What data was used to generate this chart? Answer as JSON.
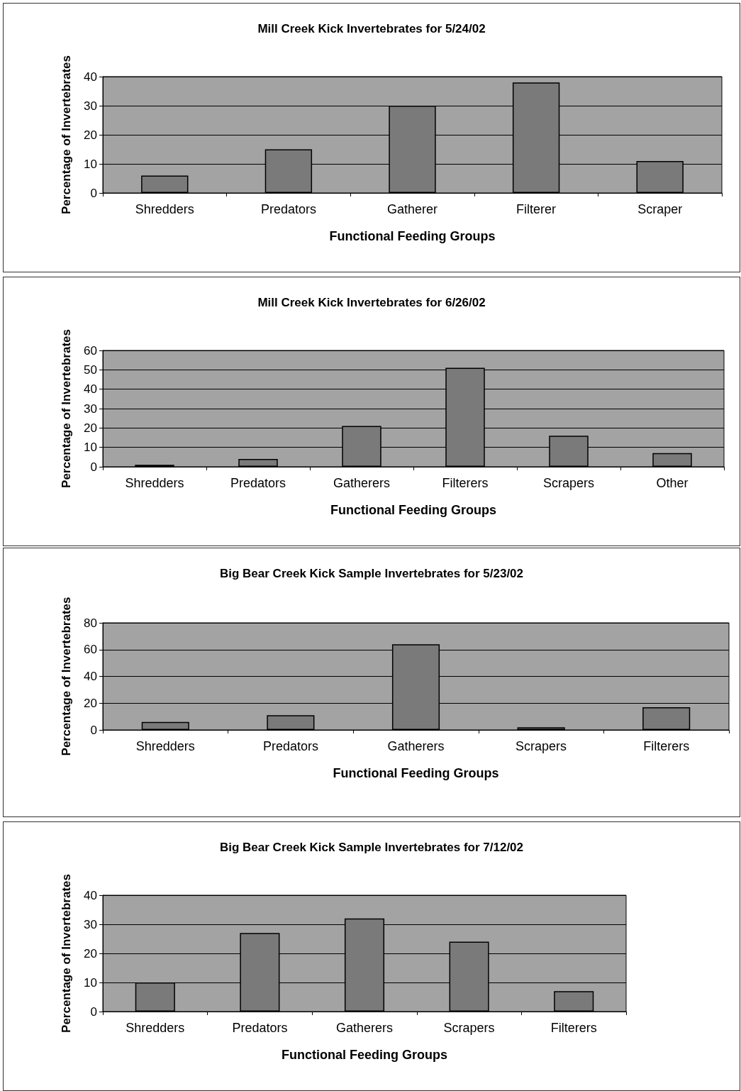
{
  "chart_data": [
    {
      "type": "bar",
      "title": "Mill Creek Kick Invertebrates for 5/24/02",
      "xlabel": "Functional Feeding Groups",
      "ylabel": "Percentage of Invertebrates",
      "categories": [
        "Shredders",
        "Predators",
        "Gatherer",
        "Filterer",
        "Scraper"
      ],
      "values": [
        6,
        15,
        30,
        38,
        11
      ],
      "color": "#7a7a7a",
      "ylim": [
        0,
        40
      ],
      "yticks": [
        0,
        10,
        20,
        30,
        40
      ],
      "grid": "y"
    },
    {
      "type": "bar",
      "title": "Mill Creek Kick Invertebrates for 6/26/02",
      "xlabel": "Functional Feeding Groups",
      "ylabel": "Percentage of Invertebrates",
      "categories": [
        "Shredders",
        "Predators",
        "Gatherers",
        "Filterers",
        "Scrapers",
        "Other"
      ],
      "values": [
        1,
        4,
        21,
        51,
        16,
        7
      ],
      "color": "#7a7a7a",
      "ylim": [
        0,
        60
      ],
      "yticks": [
        0,
        10,
        20,
        30,
        40,
        50,
        60
      ],
      "grid": "y"
    },
    {
      "type": "bar",
      "title": "Big Bear Creek Kick Sample Invertebrates for 5/23/02",
      "xlabel": "Functional Feeding Groups",
      "ylabel": "Percentage of Invertebrates",
      "categories": [
        "Shredders",
        "Predators",
        "Gatherers",
        "Scrapers",
        "Filterers"
      ],
      "values": [
        6,
        11,
        64,
        2,
        17
      ],
      "color": "#7a7a7a",
      "ylim": [
        0,
        80
      ],
      "yticks": [
        0,
        20,
        40,
        60,
        80
      ],
      "grid": "y"
    },
    {
      "type": "bar",
      "title": "Big Bear Creek Kick Sample Invertebrates for 7/12/02",
      "xlabel": "Functional Feeding Groups",
      "ylabel": "Percentage of Invertebrates",
      "categories": [
        "Shredders",
        "Predators",
        "Gatherers",
        "Scrapers",
        "Filterers"
      ],
      "values": [
        10,
        27,
        32,
        24,
        7
      ],
      "color": "#7a7a7a",
      "ylim": [
        0,
        40
      ],
      "yticks": [
        0,
        10,
        20,
        30,
        40
      ],
      "grid": "y"
    }
  ]
}
